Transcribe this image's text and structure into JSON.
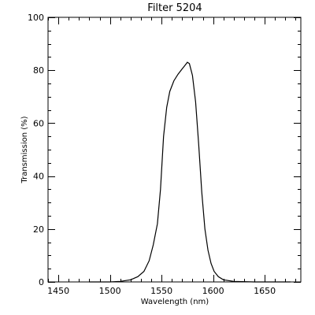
{
  "chart_data": {
    "type": "line",
    "title": "Filter 5204",
    "xlabel": "Wavelength (nm)",
    "ylabel": "Transmission (%)",
    "xlim": [
      1440,
      1685
    ],
    "ylim": [
      0,
      100
    ],
    "x_ticks": [
      1450,
      1500,
      1550,
      1600,
      1650
    ],
    "y_ticks": [
      0,
      20,
      40,
      60,
      80,
      100
    ],
    "x_minor_step": 10,
    "y_minor_step": 5,
    "grid": false,
    "series": [
      {
        "x": [
          1480,
          1500,
          1510,
          1520,
          1527,
          1533,
          1538,
          1542,
          1546,
          1549,
          1552,
          1555,
          1558,
          1562,
          1566,
          1570,
          1573,
          1575,
          1577,
          1580,
          1583,
          1586,
          1589,
          1592,
          1595,
          1598,
          1601,
          1605,
          1610,
          1620,
          1640,
          1660,
          1675
        ],
        "y": [
          0,
          0,
          0.2,
          0.8,
          2,
          4,
          8,
          14,
          22,
          35,
          55,
          66,
          72,
          76,
          78.5,
          80.5,
          82,
          83,
          82.5,
          78,
          68,
          52,
          34,
          20,
          12,
          7,
          4,
          2,
          0.8,
          0.2,
          0,
          0,
          0
        ]
      }
    ]
  }
}
